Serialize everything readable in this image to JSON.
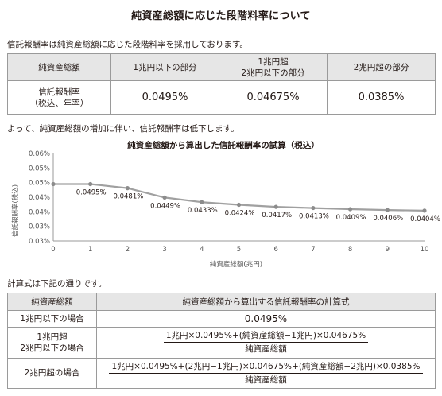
{
  "page": {
    "title": "純資産総額に応じた段階料率について",
    "intro": "信託報酬率は純資産総額に応じた段階料率を採用しております。",
    "decrease_note": "よって、純資産総額の増加に伴い、信託報酬率は低下します。",
    "calc_note": "計算式は下記の通りです。"
  },
  "rate_table": {
    "headers": [
      "純資産総額",
      "1兆円以下の部分",
      "1兆円超",
      "2兆円以下の部分",
      "2兆円超の部分"
    ],
    "row_label": [
      "信託報酬率",
      "（税込、年率）"
    ],
    "values": [
      "0.0495%",
      "0.04675%",
      "0.0385%"
    ]
  },
  "chart_data": {
    "type": "line",
    "title": "純資産総額から算出した信託報酬率の試算（税込）",
    "xlabel": "純資産総額(兆円)",
    "ylabel": "信託報酬率(税込)",
    "x": [
      0,
      1,
      2,
      3,
      4,
      5,
      6,
      7,
      8,
      9,
      10
    ],
    "y": [
      0.0495,
      0.0495,
      0.0481,
      0.0449,
      0.0433,
      0.0424,
      0.0417,
      0.0413,
      0.0409,
      0.0406,
      0.0404
    ],
    "point_labels": [
      "",
      "0.0495%",
      "0.0481%",
      "0.0449%",
      "0.0433%",
      "0.0424%",
      "0.0417%",
      "0.0413%",
      "0.0409%",
      "0.0406%",
      "0.0404%"
    ],
    "xlim": [
      0,
      10
    ],
    "ylim": [
      0.03,
      0.06
    ],
    "xticks": [
      "0",
      "1",
      "2",
      "3",
      "4",
      "5",
      "6",
      "7",
      "8",
      "9",
      "10"
    ],
    "yticks": [
      "0.03%",
      "0.03%",
      "0.04%",
      "0.04%",
      "0.05%",
      "0.05%",
      "0.06%"
    ],
    "grid": false,
    "line_color": "#a0a0a0",
    "marker_color": "#8c8c8c"
  },
  "calc_table": {
    "headers": [
      "純資産総額",
      "純資産総額から算出する信託報酬率の計算式"
    ],
    "rows": [
      {
        "label": [
          "1兆円以下の場合"
        ],
        "formula": "0.0495%"
      },
      {
        "label": [
          "1兆円超",
          "2兆円以下の場合"
        ],
        "numerator": "1兆円×0.0495%+(純資産総額−1兆円)×0.04675%",
        "denominator": "純資産総額"
      },
      {
        "label": [
          "2兆円超の場合"
        ],
        "numerator": "1兆円×0.0495%+(2兆円−1兆円)×0.04675%+(純資産総額−2兆円)×0.0385%",
        "denominator": "純資産総額"
      }
    ]
  }
}
